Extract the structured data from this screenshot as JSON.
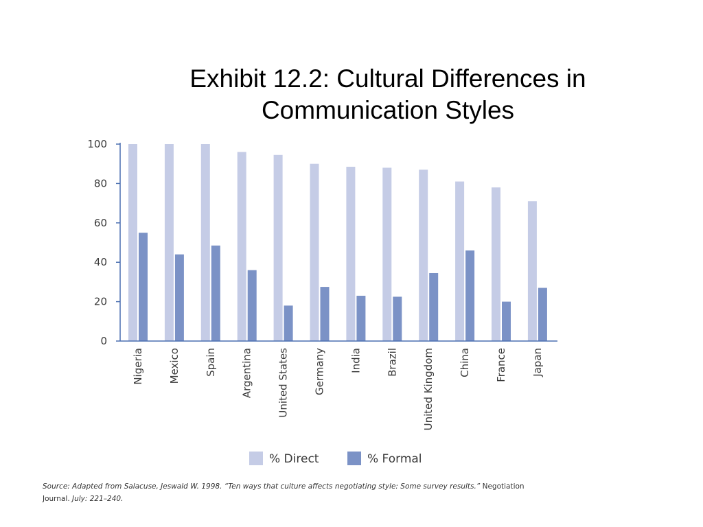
{
  "title": "Exhibit 12.2: Cultural Differences in Communication Styles",
  "colors": {
    "direct": "#c5cce6",
    "formal": "#7b92c6",
    "axis": "#4a6fb0",
    "text": "#3a3a3a"
  },
  "chart_data": {
    "type": "bar",
    "categories": [
      "Nigeria",
      "Mexico",
      "Spain",
      "Argentina",
      "United States",
      "Germany",
      "India",
      "Brazil",
      "United Kingdom",
      "China",
      "France",
      "Japan"
    ],
    "series": [
      {
        "name": "% Direct",
        "values": [
          100,
          100,
          100,
          96,
          94.5,
          90,
          88.5,
          88,
          87,
          81,
          78,
          71
        ]
      },
      {
        "name": "% Formal",
        "values": [
          55,
          44,
          48.5,
          36,
          18,
          27.5,
          23,
          22.5,
          34.5,
          46,
          20,
          27
        ]
      }
    ],
    "yticks": [
      0,
      20,
      40,
      60,
      80,
      100
    ],
    "ylim": [
      0,
      100
    ],
    "grid": false,
    "legend_position": "bottom"
  },
  "source": {
    "prefix": "Source: Adapted from Salacuse, Jeswald W. 1998. “Ten ways that culture affects negotiating style: Some survey results.”",
    "journal": " Negotiation Journal.",
    "suffix": " July: 221–240."
  }
}
